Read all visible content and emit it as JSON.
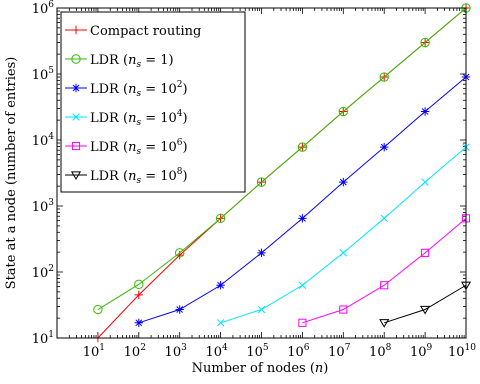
{
  "chart_data": {
    "type": "line",
    "xlabel": "Number of nodes (n)",
    "ylabel": "State at a node (number of entries)",
    "x_scale": "log",
    "y_scale": "log",
    "xlim": [
      1,
      10000000000
    ],
    "ylim": [
      10,
      1000000
    ],
    "x_ticks": [
      {
        "base": "10",
        "exp": "1"
      },
      {
        "base": "10",
        "exp": "2"
      },
      {
        "base": "10",
        "exp": "3"
      },
      {
        "base": "10",
        "exp": "4"
      },
      {
        "base": "10",
        "exp": "5"
      },
      {
        "base": "10",
        "exp": "6"
      },
      {
        "base": "10",
        "exp": "7"
      },
      {
        "base": "10",
        "exp": "8"
      },
      {
        "base": "10",
        "exp": "9"
      },
      {
        "base": "10",
        "exp": "10"
      }
    ],
    "y_ticks": [
      {
        "base": "10",
        "exp": "1"
      },
      {
        "base": "10",
        "exp": "2"
      },
      {
        "base": "10",
        "exp": "3"
      },
      {
        "base": "10",
        "exp": "4"
      },
      {
        "base": "10",
        "exp": "5"
      },
      {
        "base": "10",
        "exp": "6"
      }
    ],
    "grid": false,
    "legend_position": "top-left",
    "series": [
      {
        "name": "Compact routing",
        "color": "#ff0000",
        "marker": "plus",
        "x": [
          10,
          100,
          1000,
          10000,
          100000,
          1000000,
          10000000,
          100000000,
          1000000000,
          10000000000
        ],
        "y": [
          10,
          45,
          180,
          650,
          2300,
          7800,
          27000,
          90000,
          300000,
          1000000
        ]
      },
      {
        "name": "LDR (n_s = 1)",
        "legend_prefix": "LDR (",
        "legend_var": "n",
        "legend_sub": "s",
        "legend_eq": " = 1",
        "legend_exp": "",
        "legend_suffix": ")",
        "color": "#33bb00",
        "marker": "circle",
        "x": [
          10,
          100,
          1000,
          10000,
          100000,
          1000000,
          10000000,
          100000000,
          1000000000,
          10000000000
        ],
        "y": [
          27,
          65,
          195,
          650,
          2300,
          7800,
          27000,
          90000,
          300000,
          1000000
        ]
      },
      {
        "name": "LDR (n_s = 10^2)",
        "legend_prefix": "LDR (",
        "legend_var": "n",
        "legend_sub": "s",
        "legend_eq": " = 10",
        "legend_exp": "2",
        "legend_suffix": ")",
        "color": "#0000ff",
        "marker": "asterisk",
        "x": [
          100,
          1000,
          10000,
          100000,
          1000000,
          10000000,
          100000000,
          1000000000,
          10000000000
        ],
        "y": [
          17,
          27,
          63,
          195,
          650,
          2300,
          7800,
          27000,
          90000
        ]
      },
      {
        "name": "LDR (n_s = 10^4)",
        "legend_prefix": "LDR (",
        "legend_var": "n",
        "legend_sub": "s",
        "legend_eq": " = 10",
        "legend_exp": "4",
        "legend_suffix": ")",
        "color": "#00e5ff",
        "marker": "cross",
        "x": [
          10000,
          100000,
          1000000,
          10000000,
          100000000,
          1000000000,
          10000000000
        ],
        "y": [
          17,
          27,
          63,
          195,
          650,
          2300,
          7800
        ]
      },
      {
        "name": "LDR (n_s = 10^6)",
        "legend_prefix": "LDR (",
        "legend_var": "n",
        "legend_sub": "s",
        "legend_eq": " = 10",
        "legend_exp": "6",
        "legend_suffix": ")",
        "color": "#ff00ff",
        "marker": "square",
        "x": [
          1000000,
          10000000,
          100000000,
          1000000000,
          10000000000
        ],
        "y": [
          17,
          27,
          63,
          195,
          650
        ]
      },
      {
        "name": "LDR (n_s = 10^8)",
        "legend_prefix": "LDR (",
        "legend_var": "n",
        "legend_sub": "s",
        "legend_eq": " = 10",
        "legend_exp": "8",
        "legend_suffix": ")",
        "color": "#000000",
        "marker": "triangle-down",
        "x": [
          100000000,
          1000000000,
          10000000000
        ],
        "y": [
          17,
          27,
          63
        ]
      }
    ]
  }
}
